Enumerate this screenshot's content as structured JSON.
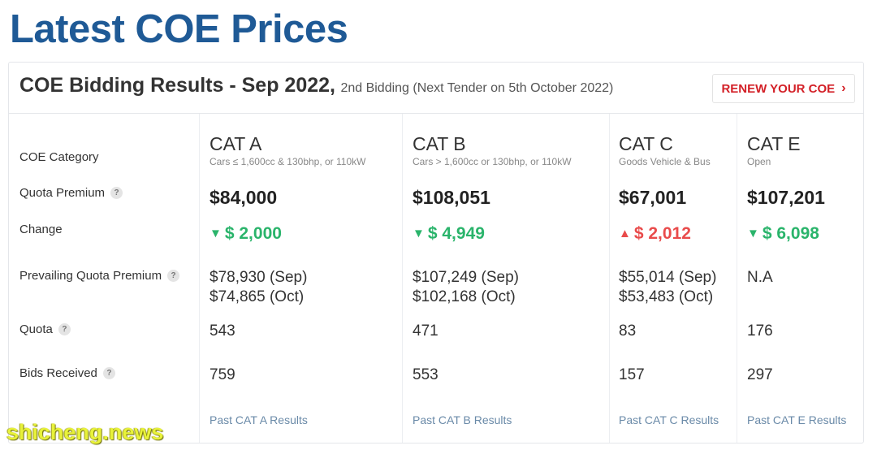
{
  "page": {
    "title": "Latest COE Prices"
  },
  "header": {
    "main": "COE Bidding Results - Sep 2022,",
    "sub": "2nd Bidding (Next Tender on 5th October 2022)",
    "renew_button": "RENEW YOUR COE",
    "renew_icon": "chevron-right-icon"
  },
  "row_labels": {
    "category": "COE Category",
    "quota_premium": "Quota Premium",
    "change": "Change",
    "prevailing": "Prevailing Quota Premium",
    "quota": "Quota",
    "bids": "Bids Received",
    "help_icon": "?"
  },
  "categories": [
    {
      "name": "CAT A",
      "desc": "Cars ≤ 1,600cc & 130bhp, or 110kW",
      "premium": "$84,000",
      "change_dir": "down",
      "change_arrow": "▼",
      "change": "$ 2,000",
      "pqp1": "$78,930 (Sep)",
      "pqp2": "$74,865 (Oct)",
      "quota": "543",
      "bids": "759",
      "link": "Past CAT A Results"
    },
    {
      "name": "CAT B",
      "desc": "Cars > 1,600cc or 130bhp, or 110kW",
      "premium": "$108,051",
      "change_dir": "down",
      "change_arrow": "▼",
      "change": "$ 4,949",
      "pqp1": "$107,249 (Sep)",
      "pqp2": "$102,168 (Oct)",
      "quota": "471",
      "bids": "553",
      "link": "Past CAT B Results"
    },
    {
      "name": "CAT C",
      "desc": "Goods Vehicle & Bus",
      "premium": "$67,001",
      "change_dir": "up",
      "change_arrow": "▲",
      "change": "$ 2,012",
      "pqp1": "$55,014 (Sep)",
      "pqp2": "$53,483 (Oct)",
      "quota": "83",
      "bids": "157",
      "link": "Past CAT C Results"
    },
    {
      "name": "CAT E",
      "desc": "Open",
      "premium": "$107,201",
      "change_dir": "down",
      "change_arrow": "▼",
      "change": "$ 6,098",
      "pqp1": "N.A",
      "pqp2": "",
      "quota": "176",
      "bids": "297",
      "link": "Past CAT E Results"
    }
  ],
  "colors": {
    "title": "#1f5a96",
    "down": "#2ab46b",
    "up": "#e94b4b",
    "renew": "#d32027",
    "link": "#6a8aa8"
  },
  "watermark": "shicheng.news"
}
